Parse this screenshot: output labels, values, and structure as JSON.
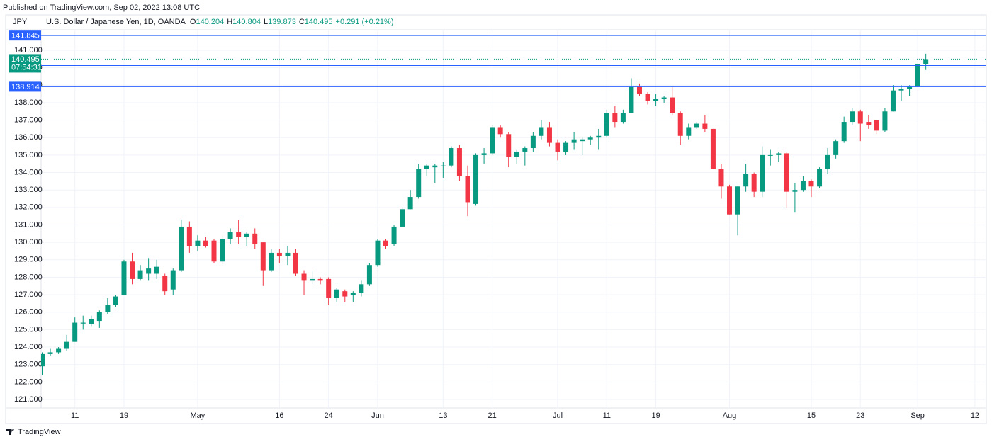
{
  "header": {
    "published": "Published on TradingView.com, Sep 02, 2022 13:08 UTC"
  },
  "footer": {
    "brand": "TradingView"
  },
  "chart_data": {
    "type": "candlestick",
    "title": "U.S. Dollar / Japanese Yen, 1D, OANDA",
    "y_label": "JPY",
    "ohlc": [
      {
        "key": "O",
        "value": 140.204
      },
      {
        "key": "H",
        "value": 140.804
      },
      {
        "key": "L",
        "value": 139.873
      },
      {
        "key": "C",
        "value": 140.495
      }
    ],
    "change": "+0.291 (+0.21%)",
    "up_color": "#089981",
    "down_color": "#f23645",
    "open": [
      122.9,
      123.6,
      123.7,
      123.9,
      124.3,
      125.35,
      125.3,
      125.5,
      126.0,
      126.4,
      127.0,
      128.9,
      127.9,
      128.2,
      128.2,
      128.1,
      127.3,
      128.4,
      130.9,
      129.8,
      130.1,
      130.1,
      128.9,
      130.2,
      130.6,
      130.3,
      130.5,
      130.0,
      128.4,
      129.4,
      129.2,
      129.4,
      128.2,
      127.8,
      127.9,
      127.9,
      126.8,
      127.2,
      127.0,
      127.1,
      127.6,
      128.7,
      130.1,
      129.9,
      130.9,
      131.9,
      132.6,
      134.2,
      134.3,
      134.4,
      134.4,
      135.4,
      133.8,
      132.2,
      135.0,
      135.1,
      136.6,
      136.2,
      134.9,
      135.2,
      135.4,
      136.1,
      136.6,
      135.7,
      135.2,
      135.7,
      135.8,
      135.9,
      136.0,
      136.1,
      137.4,
      136.9,
      137.4,
      138.9,
      138.5,
      138.1,
      138.2,
      138.3,
      137.4,
      136.1,
      136.6,
      136.8,
      136.5,
      134.2,
      133.2,
      131.6,
      133.2,
      133.9,
      132.9,
      135.0,
      135.0,
      135.1,
      132.9,
      133.0,
      133.5,
      133.2,
      134.2,
      135.0,
      135.8,
      136.9,
      137.5,
      136.9,
      137.0,
      136.4,
      137.5,
      138.7,
      138.8,
      138.9,
      140.204
    ],
    "high": [
      123.7,
      123.9,
      124.0,
      124.7,
      125.7,
      125.8,
      125.8,
      126.1,
      126.8,
      127.0,
      129.0,
      129.4,
      128.7,
      129.1,
      129.0,
      128.2,
      128.5,
      131.3,
      131.2,
      130.4,
      130.3,
      130.2,
      130.4,
      130.8,
      131.3,
      130.6,
      130.8,
      130.0,
      129.6,
      129.6,
      129.8,
      129.6,
      128.4,
      128.4,
      128.0,
      128.0,
      127.4,
      127.3,
      127.2,
      127.8,
      128.8,
      130.2,
      130.2,
      131.0,
      132.0,
      133.0,
      134.5,
      134.5,
      134.5,
      134.6,
      135.5,
      135.6,
      134.4,
      135.1,
      135.4,
      136.7,
      136.7,
      136.3,
      135.3,
      135.5,
      136.3,
      137.0,
      136.9,
      135.9,
      135.8,
      136.3,
      136.0,
      136.1,
      136.5,
      137.6,
      137.8,
      137.6,
      139.4,
      139.1,
      138.6,
      138.5,
      138.4,
      138.9,
      137.5,
      136.8,
      136.9,
      137.3,
      136.5,
      134.5,
      133.3,
      133.2,
      134.5,
      134.0,
      135.5,
      135.3,
      135.2,
      135.2,
      133.4,
      133.8,
      133.6,
      134.3,
      135.4,
      135.9,
      137.2,
      137.7,
      137.6,
      137.3,
      137.0,
      137.7,
      139.0,
      139.0,
      139.0,
      140.2,
      140.804
    ],
    "low": [
      122.4,
      123.5,
      123.6,
      123.8,
      124.3,
      125.0,
      125.2,
      125.1,
      125.9,
      126.3,
      127.0,
      127.6,
      127.8,
      127.8,
      127.9,
      127.0,
      127.0,
      128.3,
      129.4,
      129.5,
      129.7,
      128.8,
      128.7,
      129.9,
      129.9,
      129.8,
      129.6,
      127.5,
      128.3,
      128.8,
      128.7,
      128.1,
      127.0,
      127.6,
      127.6,
      126.4,
      126.6,
      126.6,
      126.6,
      126.9,
      127.5,
      128.6,
      129.6,
      129.8,
      130.9,
      131.9,
      132.5,
      133.8,
      133.4,
      133.7,
      134.3,
      133.5,
      131.5,
      132.1,
      134.5,
      135.0,
      136.0,
      134.3,
      134.5,
      134.4,
      135.2,
      135.9,
      135.5,
      134.7,
      135.0,
      135.3,
      135.0,
      135.6,
      135.3,
      136.0,
      136.6,
      136.8,
      137.4,
      138.4,
      137.9,
      137.8,
      138.0,
      137.3,
      135.6,
      135.9,
      136.5,
      136.3,
      134.2,
      132.5,
      131.6,
      130.4,
      132.9,
      132.6,
      132.6,
      134.4,
      134.6,
      132.0,
      131.7,
      132.9,
      132.6,
      133.1,
      133.9,
      134.8,
      135.7,
      136.7,
      135.8,
      136.5,
      136.2,
      136.3,
      137.5,
      138.1,
      138.4,
      138.9,
      139.873
    ],
    "close": [
      123.6,
      123.7,
      123.9,
      124.3,
      125.4,
      125.4,
      125.6,
      126.0,
      126.4,
      126.9,
      128.9,
      127.9,
      128.4,
      128.5,
      128.6,
      127.2,
      128.4,
      130.9,
      129.8,
      130.1,
      129.8,
      128.9,
      130.2,
      130.6,
      130.3,
      130.5,
      129.9,
      128.4,
      129.4,
      129.2,
      129.4,
      128.2,
      127.8,
      127.9,
      127.8,
      126.8,
      127.3,
      126.9,
      127.1,
      127.6,
      128.7,
      130.1,
      129.8,
      130.9,
      131.9,
      132.6,
      134.2,
      134.4,
      134.4,
      134.4,
      135.4,
      133.8,
      132.3,
      135.0,
      135.1,
      136.6,
      136.2,
      134.9,
      135.2,
      135.4,
      136.1,
      136.6,
      135.7,
      135.2,
      135.7,
      135.9,
      135.9,
      136.0,
      136.1,
      137.4,
      136.9,
      137.4,
      138.9,
      138.5,
      138.1,
      138.2,
      138.3,
      137.4,
      136.1,
      136.6,
      136.8,
      136.5,
      134.2,
      133.2,
      131.6,
      133.2,
      133.9,
      132.9,
      135.0,
      135.0,
      135.1,
      132.9,
      133.0,
      133.5,
      133.2,
      134.2,
      135.0,
      135.8,
      136.9,
      137.5,
      136.8,
      136.7,
      136.4,
      137.5,
      138.7,
      138.8,
      138.9,
      140.2,
      140.495
    ],
    "xlim": [
      -0.13,
      115.39
    ],
    "xticks": [
      {
        "value": 4,
        "label": "11"
      },
      {
        "value": 10,
        "label": "19"
      },
      {
        "value": 19,
        "label": "May"
      },
      {
        "value": 29,
        "label": "16"
      },
      {
        "value": 35,
        "label": "24"
      },
      {
        "value": 41,
        "label": "Jun"
      },
      {
        "value": 49,
        "label": "13"
      },
      {
        "value": 55,
        "label": "21"
      },
      {
        "value": 63,
        "label": "Jul"
      },
      {
        "value": 69,
        "label": "11"
      },
      {
        "value": 75,
        "label": "19"
      },
      {
        "value": 84,
        "label": "Aug"
      },
      {
        "value": 94,
        "label": "15"
      },
      {
        "value": 100,
        "label": "23"
      },
      {
        "value": 107,
        "label": "Sep"
      },
      {
        "value": 114,
        "label": "12"
      }
    ],
    "ylim": [
      120.513,
      142.176
    ],
    "yticks": [
      {
        "value": 121,
        "label": "121.000"
      },
      {
        "value": 122,
        "label": "122.000"
      },
      {
        "value": 123,
        "label": "123.000"
      },
      {
        "value": 124,
        "label": "124.000"
      },
      {
        "value": 125,
        "label": "125.000"
      },
      {
        "value": 126,
        "label": "126.000"
      },
      {
        "value": 127,
        "label": "127.000"
      },
      {
        "value": 128,
        "label": "128.000"
      },
      {
        "value": 129,
        "label": "129.000"
      },
      {
        "value": 130,
        "label": "130.000"
      },
      {
        "value": 131,
        "label": "131.000"
      },
      {
        "value": 132,
        "label": "132.000"
      },
      {
        "value": 133,
        "label": "133.000"
      },
      {
        "value": 134,
        "label": "134.000"
      },
      {
        "value": 135,
        "label": "135.000"
      },
      {
        "value": 136,
        "label": "136.000"
      },
      {
        "value": 137,
        "label": "137.000"
      },
      {
        "value": 138,
        "label": "138.000"
      },
      {
        "value": 139,
        "label": "139.000"
      },
      {
        "value": 140,
        "label": "140.000"
      },
      {
        "value": 141,
        "label": "141.000"
      }
    ],
    "grid": true,
    "price_lines": [
      {
        "value": 141.845,
        "color": "#2962ff"
      },
      {
        "value": 140.129,
        "color": "#2962ff"
      },
      {
        "value": 138.914,
        "color": "#2962ff"
      }
    ],
    "last_price": {
      "value": 140.495,
      "countdown": "07:54:31",
      "color": "#089981"
    }
  }
}
